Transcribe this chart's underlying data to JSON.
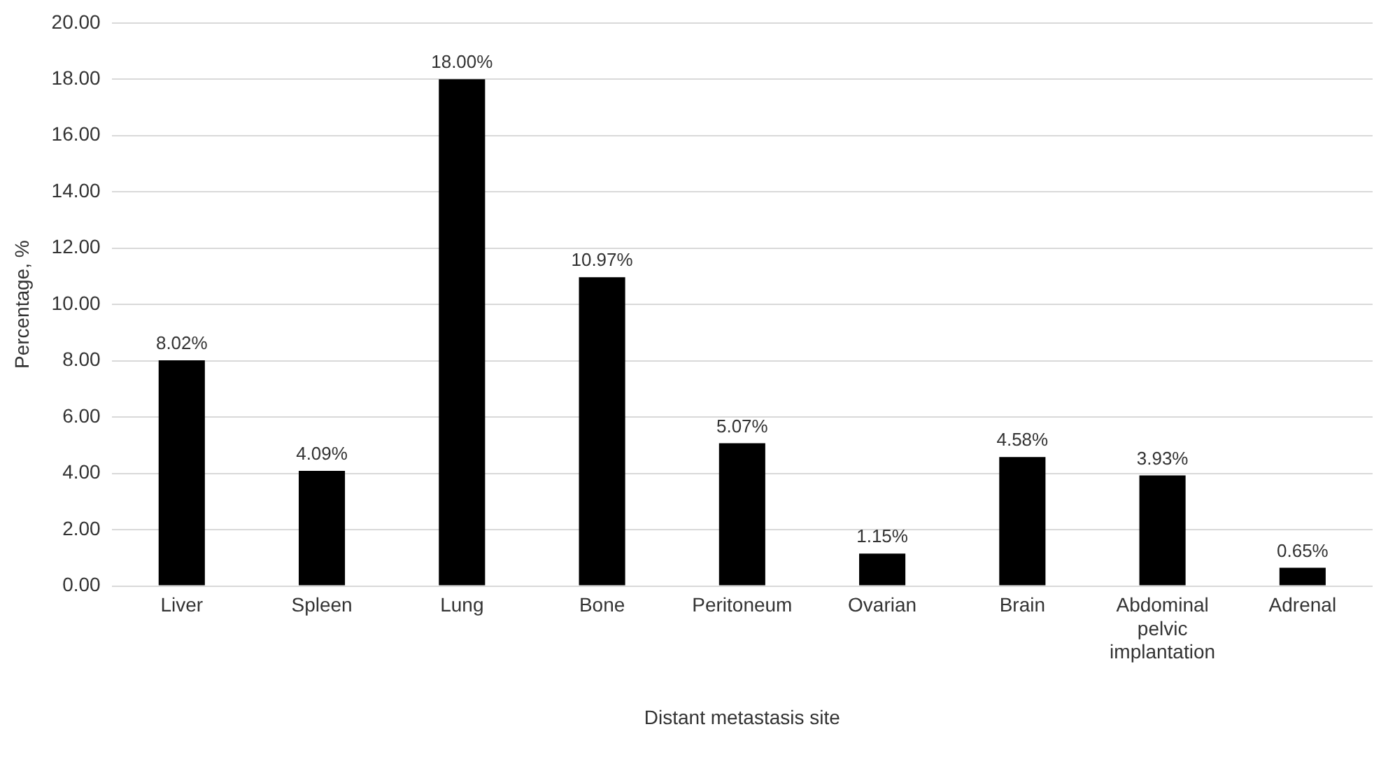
{
  "chart_data": {
    "type": "bar",
    "xlabel": "Distant metastasis site",
    "ylabel": "Percentage, %",
    "categories": [
      "Liver",
      "Spleen",
      "Lung",
      "Bone",
      "Peritoneum",
      "Ovarian",
      "Brain",
      "Abdominal pelvic implantation",
      "Adrenal"
    ],
    "values": [
      8.02,
      4.09,
      18.0,
      10.97,
      5.07,
      1.15,
      4.58,
      3.93,
      0.65
    ],
    "value_labels": [
      "8.02%",
      "4.09%",
      "18.00%",
      "10.97%",
      "5.07%",
      "1.15%",
      "4.58%",
      "3.93%",
      "0.65%"
    ],
    "color": "#000000",
    "ylim": [
      0,
      20
    ],
    "yticks": [
      {
        "value": 0,
        "label": "0.00"
      },
      {
        "value": 2,
        "label": "2.00"
      },
      {
        "value": 4,
        "label": "4.00"
      },
      {
        "value": 6,
        "label": "6.00"
      },
      {
        "value": 8,
        "label": "8.00"
      },
      {
        "value": 10,
        "label": "10.00"
      },
      {
        "value": 12,
        "label": "12.00"
      },
      {
        "value": 14,
        "label": "14.00"
      },
      {
        "value": 16,
        "label": "16.00"
      },
      {
        "value": 18,
        "label": "18.00"
      },
      {
        "value": 20,
        "label": "20.00"
      }
    ],
    "grid": "y"
  }
}
